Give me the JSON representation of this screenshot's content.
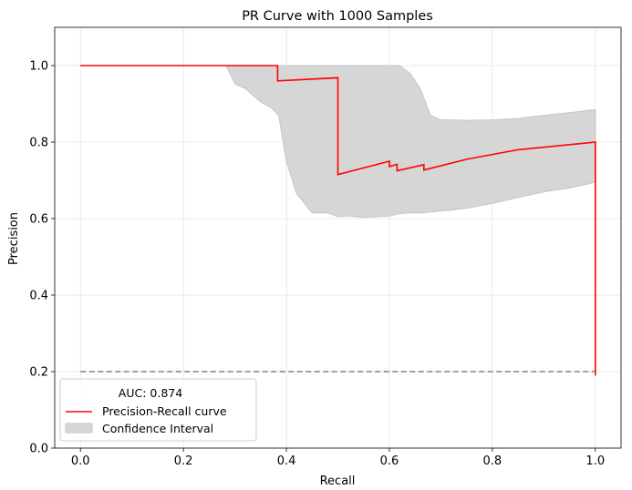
{
  "chart_data": {
    "type": "line",
    "title": "PR Curve with 1000 Samples",
    "xlabel": "Recall",
    "ylabel": "Precision",
    "xlim": [
      -0.05,
      1.05
    ],
    "ylim": [
      0.0,
      1.1
    ],
    "xticks": [
      0.0,
      0.2,
      0.4,
      0.6,
      0.8,
      1.0
    ],
    "xtick_labels": [
      "0.0",
      "0.2",
      "0.4",
      "0.6",
      "0.8",
      "1.0"
    ],
    "yticks": [
      0.0,
      0.2,
      0.4,
      0.6,
      0.8,
      1.0
    ],
    "ytick_labels": [
      "0.0",
      "0.2",
      "0.4",
      "0.6",
      "0.8",
      "1.0"
    ],
    "grid": true,
    "legend": {
      "placement": "lower-left",
      "title": "AUC: 0.874",
      "entries": [
        "Precision-Recall curve",
        "Confidence Interval"
      ]
    },
    "series": [
      {
        "name": "Precision-Recall curve",
        "color": "#ff0000",
        "x": [
          0.0,
          0.383,
          0.383,
          0.5,
          0.5,
          0.6,
          0.6,
          0.615,
          0.615,
          0.667,
          0.667,
          0.75,
          0.85,
          1.0,
          1.0
        ],
        "y": [
          1.0,
          1.0,
          0.96,
          0.968,
          0.715,
          0.75,
          0.736,
          0.742,
          0.725,
          0.741,
          0.727,
          0.755,
          0.78,
          0.8,
          0.19
        ]
      }
    ],
    "confidence_interval": {
      "name": "Confidence Interval",
      "color": "#d6d6d6",
      "x": [
        0.283,
        0.3,
        0.32,
        0.35,
        0.37,
        0.385,
        0.4,
        0.42,
        0.45,
        0.48,
        0.5,
        0.52,
        0.55,
        0.58,
        0.6,
        0.62,
        0.64,
        0.66,
        0.68,
        0.7,
        0.72,
        0.75,
        0.8,
        0.85,
        0.9,
        0.95,
        1.0
      ],
      "upper": [
        1.0,
        1.0,
        1.0,
        1.0,
        1.0,
        1.0,
        1.0,
        1.0,
        1.0,
        1.0,
        1.0,
        1.0,
        1.0,
        1.0,
        1.0,
        1.0,
        0.98,
        0.94,
        0.87,
        0.858,
        0.858,
        0.857,
        0.858,
        0.862,
        0.87,
        0.877,
        0.885
      ],
      "lower": [
        1.0,
        0.952,
        0.94,
        0.905,
        0.89,
        0.87,
        0.75,
        0.665,
        0.615,
        0.615,
        0.605,
        0.607,
        0.603,
        0.605,
        0.607,
        0.613,
        0.615,
        0.615,
        0.617,
        0.62,
        0.622,
        0.627,
        0.64,
        0.655,
        0.67,
        0.68,
        0.695
      ]
    },
    "baseline": {
      "y": 0.2,
      "x": [
        0.0,
        1.0
      ],
      "style": "dashed",
      "color": "#808080"
    }
  }
}
